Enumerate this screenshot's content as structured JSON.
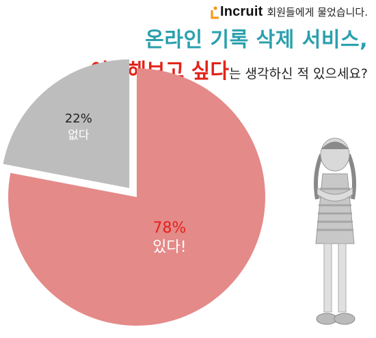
{
  "header": {
    "logo_text": "Incruit",
    "intro": "회원들에게 물었습니다.",
    "question_line1": "온라인 기록 삭제 서비스,",
    "question_highlight": "이용해보고 싶다",
    "question_rest": "는 생각하신 적 있으세요?"
  },
  "colors": {
    "accent_teal": "#2aa0ad",
    "accent_red": "#e2231a",
    "slice_yes": "#e48a89",
    "slice_no": "#bdbdbd"
  },
  "chart_data": {
    "type": "pie",
    "slices": [
      {
        "label": "있다!",
        "value": 78,
        "value_label": "78%",
        "color": "#e48a89"
      },
      {
        "label": "없다",
        "value": 22,
        "value_label": "22%",
        "color": "#bdbdbd"
      }
    ]
  }
}
